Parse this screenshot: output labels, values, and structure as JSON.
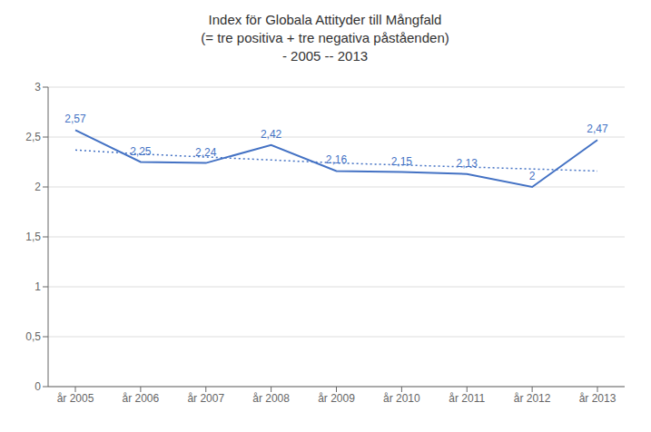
{
  "chart_data": {
    "type": "line",
    "title": "Index för Globala Attityder till Mångfald\n(= tre positiva + tre negativa påståenden)\n- 2005 -- 2013",
    "categories": [
      "år 2005",
      "år 2006",
      "år 2007",
      "år 2008",
      "år 2009",
      "år 2010",
      "år 2011",
      "år 2012",
      "år 2013"
    ],
    "series": [
      {
        "color": "#4472C4",
        "line_style": "solid",
        "data_labels": true,
        "values": [
          2.57,
          2.25,
          2.24,
          2.42,
          2.16,
          2.15,
          2.13,
          2.0,
          2.47
        ],
        "value_labels": [
          "2,57",
          "2,25",
          "2,24",
          "2,42",
          "2,16",
          "2,15",
          "2,13",
          "2",
          "2,47"
        ]
      },
      {
        "color": "#4472C4",
        "line_style": "dotted",
        "values": [
          2.37,
          2.33,
          2.3,
          2.27,
          2.24,
          2.22,
          2.2,
          2.18,
          2.16
        ]
      }
    ],
    "ylim": [
      0,
      3.0
    ],
    "yticks": [
      0,
      {
        "value": 0.5,
        "label": "0,5"
      },
      1,
      {
        "value": 1.5,
        "label": "1,5"
      },
      2,
      {
        "value": 2.5,
        "label": "2,5"
      },
      3
    ],
    "grid": true
  }
}
